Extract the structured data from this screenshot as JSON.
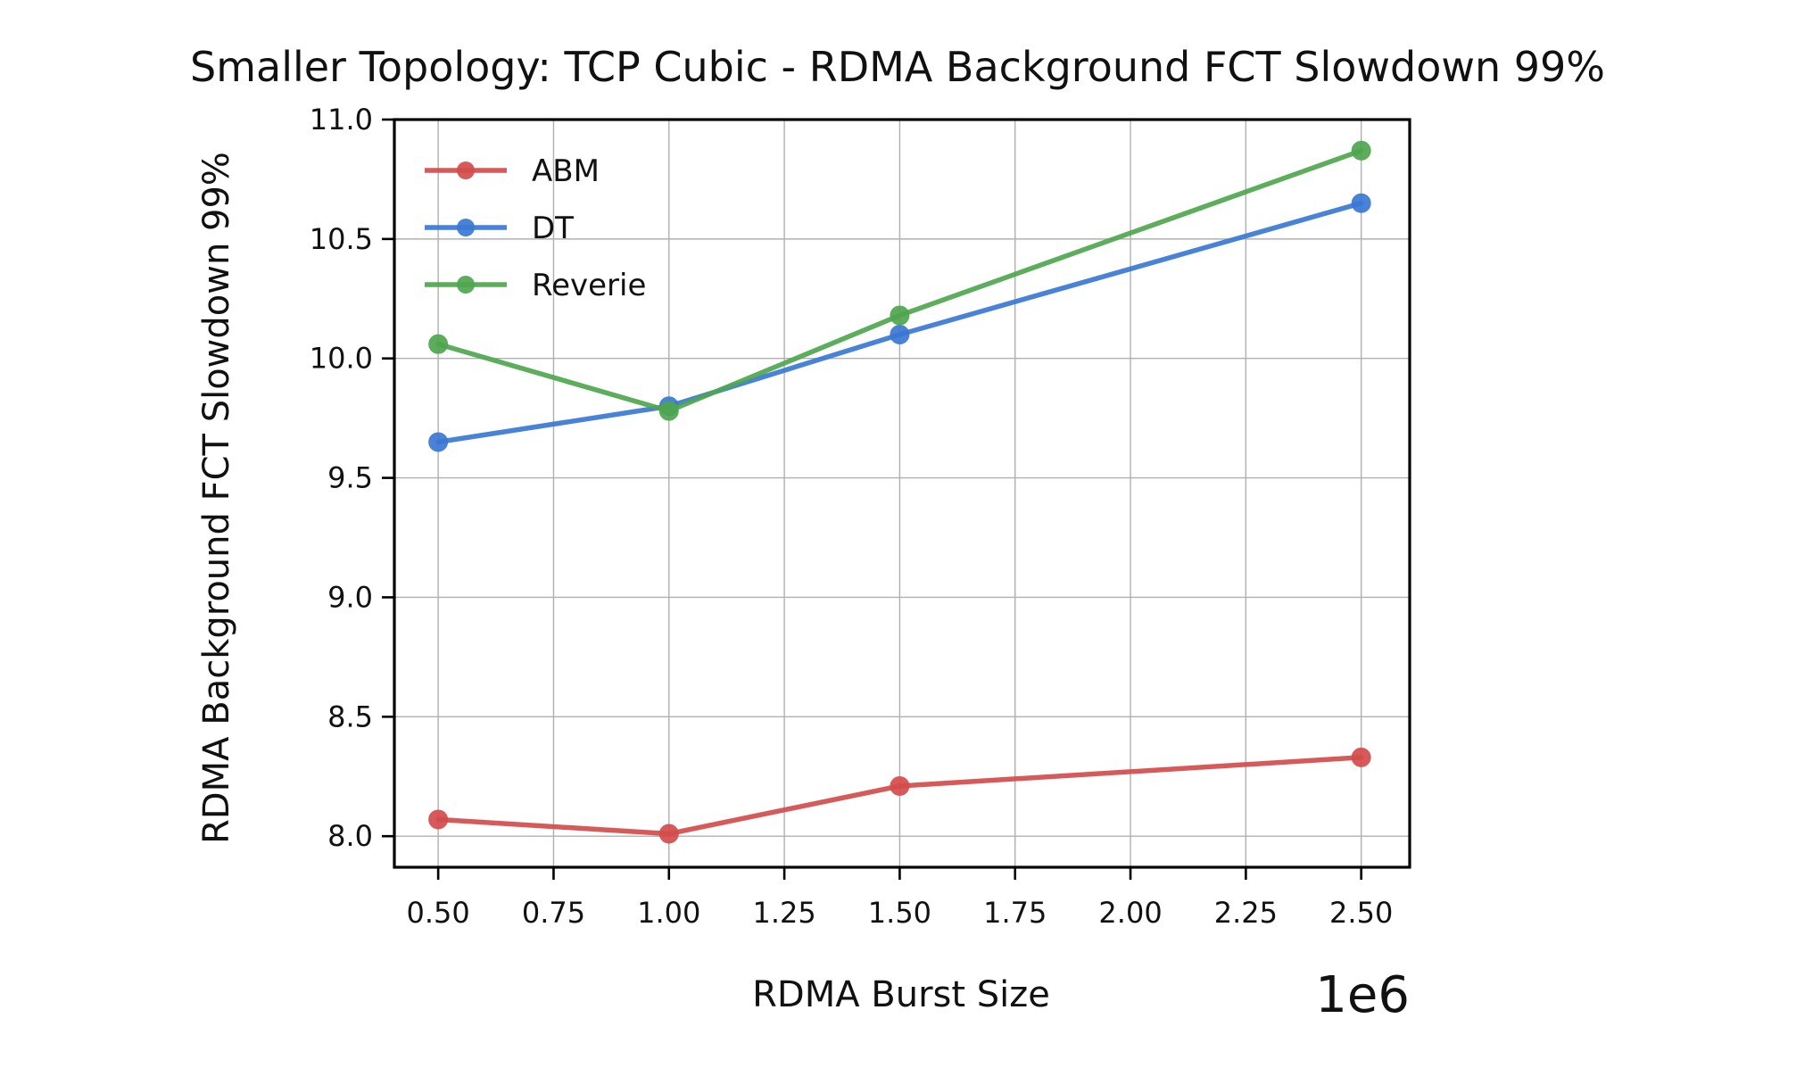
{
  "chart_data": {
    "type": "line",
    "title": "Smaller Topology: TCP Cubic - RDMA Background FCT Slowdown 99%",
    "xlabel": "RDMA Burst Size",
    "ylabel": "RDMA Background FCT Slowdown 99%",
    "x_offset_label": "1e6",
    "x": [
      500000,
      1000000,
      1500000,
      2500000
    ],
    "xlim": [
      405000,
      2605000
    ],
    "ylim": [
      7.87,
      11.0
    ],
    "x_ticks": [
      500000,
      750000,
      1000000,
      1250000,
      1500000,
      1750000,
      2000000,
      2250000,
      2500000
    ],
    "x_tick_labels": [
      "0.50",
      "0.75",
      "1.00",
      "1.25",
      "1.50",
      "1.75",
      "2.00",
      "2.25",
      "2.50"
    ],
    "y_ticks": [
      8.0,
      8.5,
      9.0,
      9.5,
      10.0,
      10.5,
      11.0
    ],
    "y_tick_labels": [
      "8.0",
      "8.5",
      "9.0",
      "9.5",
      "10.0",
      "10.5",
      "11.0"
    ],
    "grid": true,
    "legend_position": "top-left",
    "series": [
      {
        "name": "ABM",
        "color": "#d44c4c",
        "values": [
          8.07,
          8.01,
          8.21,
          8.33
        ]
      },
      {
        "name": "DT",
        "color": "#3a78d4",
        "values": [
          9.65,
          9.8,
          10.1,
          10.65
        ]
      },
      {
        "name": "Reverie",
        "color": "#4ea64e",
        "values": [
          10.06,
          9.78,
          10.18,
          10.87
        ]
      }
    ]
  }
}
